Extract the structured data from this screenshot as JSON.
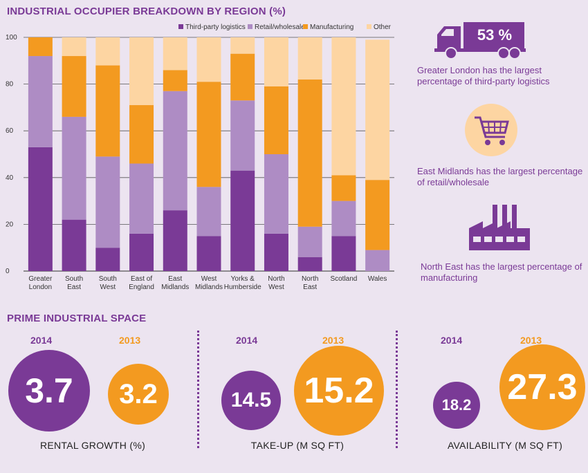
{
  "chart_title": "INDUSTRIAL OCCUPIER BREAKDOWN BY REGION (%)",
  "colors": {
    "third_party": "#7a3a96",
    "retail": "#ae8cc4",
    "manufacturing": "#f39a20",
    "other": "#fdd5a2",
    "grid": "#555555"
  },
  "chart_data": {
    "type": "bar",
    "stacked": true,
    "title": "INDUSTRIAL OCCUPIER BREAKDOWN BY REGION (%)",
    "xlabel": "",
    "ylabel": "",
    "ylim": [
      0,
      100
    ],
    "yticks": [
      0,
      20,
      40,
      60,
      80,
      100
    ],
    "legend_position": "top-right",
    "categories": [
      [
        "Greater",
        "London"
      ],
      [
        "South",
        "East"
      ],
      [
        "South",
        "West"
      ],
      [
        "East of",
        "England"
      ],
      [
        "East",
        "Midlands"
      ],
      [
        "West",
        "Midlands"
      ],
      [
        "Yorks &",
        "Humberside"
      ],
      [
        "North",
        "West"
      ],
      [
        "North",
        "East"
      ],
      [
        "Scotland"
      ],
      [
        "Wales"
      ]
    ],
    "series": [
      {
        "name": "Third-party logistics",
        "key": "third_party",
        "values": [
          53,
          22,
          10,
          16,
          26,
          15,
          43,
          16,
          6,
          15,
          0
        ]
      },
      {
        "name": "Retail/wholesale",
        "key": "retail",
        "values": [
          39,
          44,
          39,
          30,
          51,
          21,
          30,
          34,
          13,
          15,
          9
        ]
      },
      {
        "name": "Manufacturing",
        "key": "manufacturing",
        "values": [
          8,
          26,
          39,
          25,
          9,
          45,
          20,
          29,
          63,
          11,
          30
        ]
      },
      {
        "name": "Other",
        "key": "other",
        "values": [
          0,
          8,
          12,
          29,
          14,
          19,
          7,
          21,
          18,
          59,
          60
        ]
      }
    ]
  },
  "callouts": {
    "truck_value": "53 %",
    "truck_text": "Greater London has the largest percentage of third-party logistics",
    "cart_text": "East Midlands has the largest percentage of retail/wholesale",
    "factory_text": "North East has the largest percentage of manufacturing"
  },
  "prime": {
    "title": "PRIME INDUSTRIAL SPACE",
    "year_2014": "2014",
    "year_2013": "2013",
    "rental": {
      "label": "RENTAL GROWTH (%)",
      "v2014": "3.7",
      "v2013": "3.2"
    },
    "takeup": {
      "label": "TAKE-UP (M SQ FT)",
      "v2014": "14.5",
      "v2013": "15.2"
    },
    "availability": {
      "label": "AVAILABILITY (M SQ FT)",
      "v2014": "18.2",
      "v2013": "27.3"
    }
  }
}
